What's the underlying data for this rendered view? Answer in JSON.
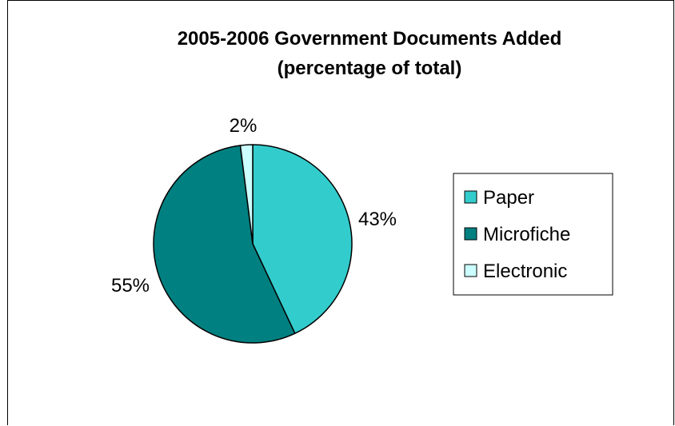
{
  "chart_data": {
    "type": "pie",
    "title": "2005-2006 Government Documents Added",
    "subtitle": "(percentage of total)",
    "categories": [
      "Paper",
      "Microfiche",
      "Electronic"
    ],
    "values": [
      43,
      55,
      2
    ],
    "data_labels": [
      "43%",
      "55%",
      "2%"
    ],
    "colors": [
      "#33CCCC",
      "#008080",
      "#CCFFFF"
    ],
    "legend_position": "right"
  }
}
